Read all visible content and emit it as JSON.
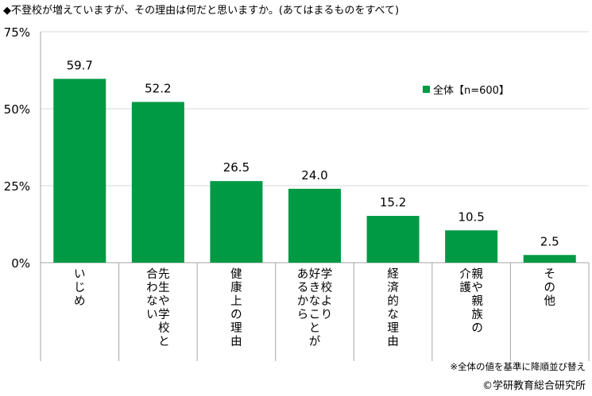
{
  "title": "◆不登校が増えていますが、その理由は何だと思いますか。(あてはまるものをすべて)",
  "note": "※全体の値を基準に降順並び替え",
  "credit": "©学研教育総合研究所",
  "colors": {
    "bar": "#009944",
    "grid": "#d9d9d9",
    "axis": "#a6a6a6"
  },
  "chart_data": {
    "type": "bar",
    "categories": [
      [
        "いじめ"
      ],
      [
        "合わない",
        "先生や学校と"
      ],
      [
        "健康上の理由"
      ],
      [
        "あるから",
        "好きなことが",
        "学校より"
      ],
      [
        "経済的な理由"
      ],
      [
        "介護",
        "親や親族の"
      ],
      [
        "その他"
      ]
    ],
    "series": [
      {
        "name": "全体【n=600】",
        "values": [
          59.7,
          52.2,
          26.5,
          24.0,
          15.2,
          10.5,
          2.5
        ]
      }
    ],
    "data_labels": [
      "59.7",
      "52.2",
      "26.5",
      "24.0",
      "15.2",
      "10.5",
      "2.5"
    ],
    "ylim": [
      0,
      75
    ],
    "yticks": [
      0,
      25,
      50,
      75
    ],
    "ytick_labels": [
      "0%",
      "25%",
      "50%",
      "75%"
    ],
    "grid": true,
    "legend_position": "top-right"
  }
}
